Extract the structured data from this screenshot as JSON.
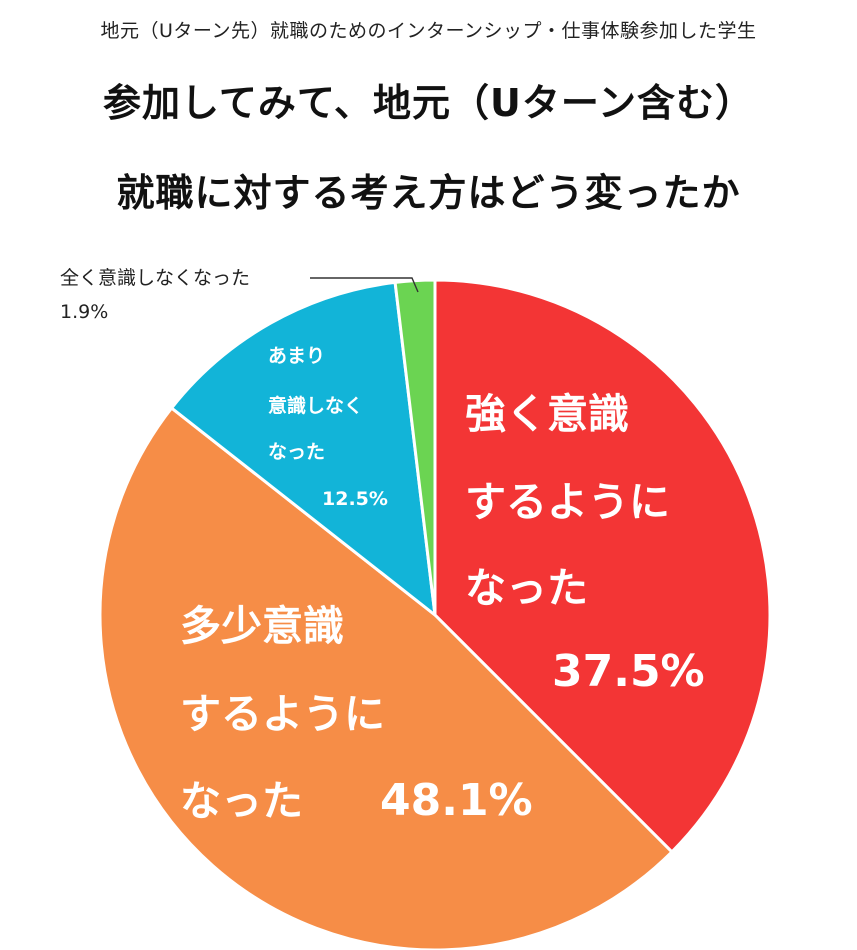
{
  "header": {
    "subtitle": "地元（Uターン先）就職のためのインターンシップ・仕事体験参加した学生",
    "title_line1": "参加してみて、地元（Uターン含む）",
    "title_line2": "就職に対する考え方はどう変ったか"
  },
  "chart_data": {
    "type": "pie",
    "title": "参加してみて、地元（Uターン含む）就職に対する考え方はどう変ったか",
    "subtitle": "地元（Uターン先）就職のためのインターンシップ・仕事体験参加した学生",
    "unit": "%",
    "slices": [
      {
        "label": "強く意識するようになった",
        "value": 37.5,
        "color": "#f33535",
        "label_lines": [
          "強く意識",
          "するように",
          "なった"
        ],
        "value_text": "37.5%"
      },
      {
        "label": "多少意識するようになった",
        "value": 48.1,
        "color": "#f68d47",
        "label_lines": [
          "多少意識",
          "するように",
          "なった"
        ],
        "value_text": "48.1%"
      },
      {
        "label": "あまり意識しなくなった",
        "value": 12.5,
        "color": "#12b4d8",
        "label_lines": [
          "あまり",
          "意識しなく",
          "なった"
        ],
        "value_text": "12.5%"
      },
      {
        "label": "全く意識しなくなった",
        "value": 1.9,
        "color": "#6bd452",
        "label_lines": [
          "全く意識しなくなった"
        ],
        "value_text": "1.9%"
      }
    ]
  }
}
